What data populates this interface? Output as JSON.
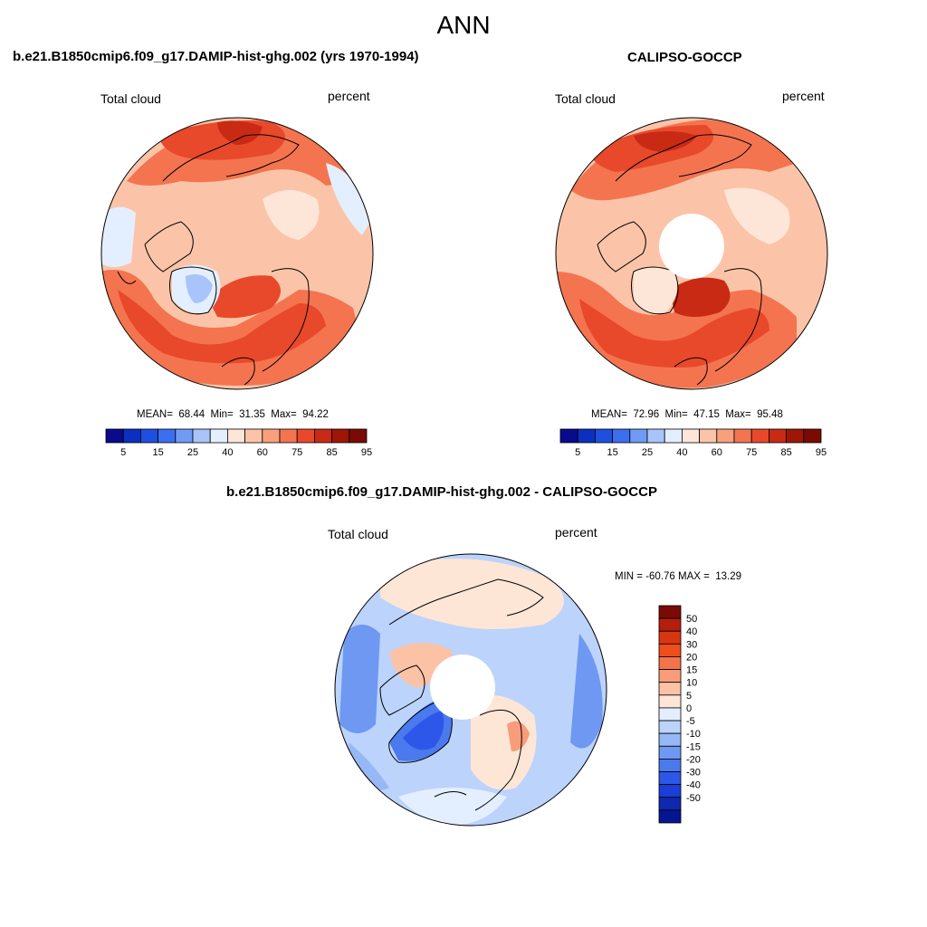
{
  "main_title": "ANN",
  "panels": [
    {
      "title": "b.e21.B1850cmip6.f09_g17.DAMIP-hist-ghg.002 (yrs 1970-1994)",
      "variable": "Total cloud",
      "units": "percent",
      "stats": "MEAN=  68.44  Min=  31.35  Max=  94.22"
    },
    {
      "title": "CALIPSO-GOCCP",
      "variable": "Total cloud",
      "units": "percent",
      "stats": "MEAN=  72.96  Min=  47.15  Max=  95.48"
    },
    {
      "title": "b.e21.B1850cmip6.f09_g17.DAMIP-hist-ghg.002 - CALIPSO-GOCCP",
      "variable": "Total cloud",
      "units": "percent",
      "stats": "MIN = -60.76 MAX =  13.29"
    }
  ],
  "colorbar_abs": {
    "colors": [
      "#0a0a8c",
      "#0b2fbf",
      "#1f4fe0",
      "#3b6ff0",
      "#6f9bf5",
      "#a8c4fa",
      "#e3efff",
      "#fde6d8",
      "#fbc4a8",
      "#f89f7c",
      "#f47450",
      "#e8492a",
      "#c82a14",
      "#9e1606",
      "#7a0a04"
    ],
    "tick_labels": [
      "5",
      "15",
      "25",
      "40",
      "60",
      "75",
      "85",
      "95"
    ]
  },
  "colorbar_diff": {
    "colors": [
      "#7a0a04",
      "#b51e0c",
      "#d8360f",
      "#ee4d1c",
      "#f3744a",
      "#f89c7a",
      "#fbc2a6",
      "#fde6d6",
      "#e3efff",
      "#bcd3fb",
      "#97b8f7",
      "#6e98f2",
      "#4b79ee",
      "#2d57e8",
      "#1a3ed8",
      "#0e28b0",
      "#051590"
    ],
    "tick_labels": [
      "50",
      "40",
      "30",
      "20",
      "15",
      "10",
      "5",
      "0",
      "-5",
      "-10",
      "-15",
      "-20",
      "-30",
      "-40",
      "-50"
    ]
  }
}
